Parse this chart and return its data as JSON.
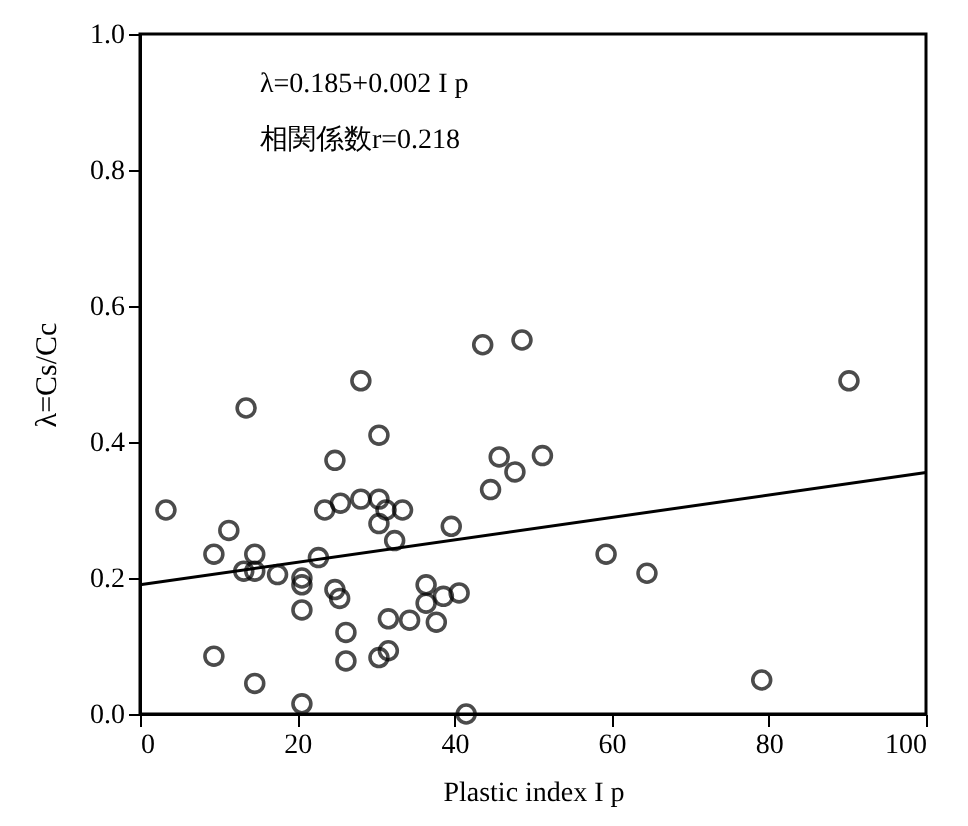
{
  "chart_data": {
    "type": "scatter",
    "xlabel": "Plastic index I p",
    "ylabel": "λ=Cs/Cc",
    "annotations": [
      "λ=0.185+0.002 I p",
      "相関係数r=0.218"
    ],
    "xlim": [
      0,
      100
    ],
    "ylim": [
      0,
      1.0
    ],
    "xticks": [
      0,
      20,
      40,
      60,
      80,
      100
    ],
    "yticks": [
      {
        "value": 0,
        "label": "0.0"
      },
      0.2,
      0.4,
      0.6,
      0.8,
      {
        "value": 1.0,
        "label": "1.0"
      }
    ],
    "grid": false,
    "series": [
      {
        "marker": "circle",
        "color": "#000000",
        "x": [
          3.3,
          11.3,
          9.4,
          14.6,
          13.2,
          14.6,
          17.5,
          20.6,
          20.6,
          22.7,
          13.5,
          9.4,
          14.6,
          20.6,
          20.6,
          23.5,
          25.5,
          24.8,
          28.1,
          30.4,
          28.1,
          30.4,
          31.3,
          30.4,
          33.4,
          32.4,
          24.8,
          25.4,
          26.2,
          26.2,
          30.4,
          31.6,
          31.6,
          34.3,
          37.7,
          36.4,
          36.4,
          38.6,
          40.6,
          39.6,
          41.5,
          43.6,
          48.6,
          44.6,
          45.7,
          47.7,
          51.2,
          59.3,
          64.5,
          79.1,
          90.2
        ],
        "values": [
          0.3,
          0.27,
          0.235,
          0.235,
          0.21,
          0.21,
          0.205,
          0.2,
          0.19,
          0.23,
          0.45,
          0.085,
          0.045,
          0.015,
          0.153,
          0.3,
          0.31,
          0.373,
          0.49,
          0.41,
          0.316,
          0.316,
          0.3,
          0.28,
          0.3,
          0.255,
          0.183,
          0.17,
          0.12,
          0.078,
          0.083,
          0.093,
          0.14,
          0.138,
          0.135,
          0.19,
          0.163,
          0.173,
          0.178,
          0.276,
          0.0,
          0.543,
          0.55,
          0.33,
          0.378,
          0.356,
          0.38,
          0.235,
          0.207,
          0.05,
          0.49
        ]
      },
      {
        "type": "line",
        "color": "#000000",
        "x": [
          0,
          100
        ],
        "values": [
          0.19,
          0.355
        ]
      }
    ]
  }
}
